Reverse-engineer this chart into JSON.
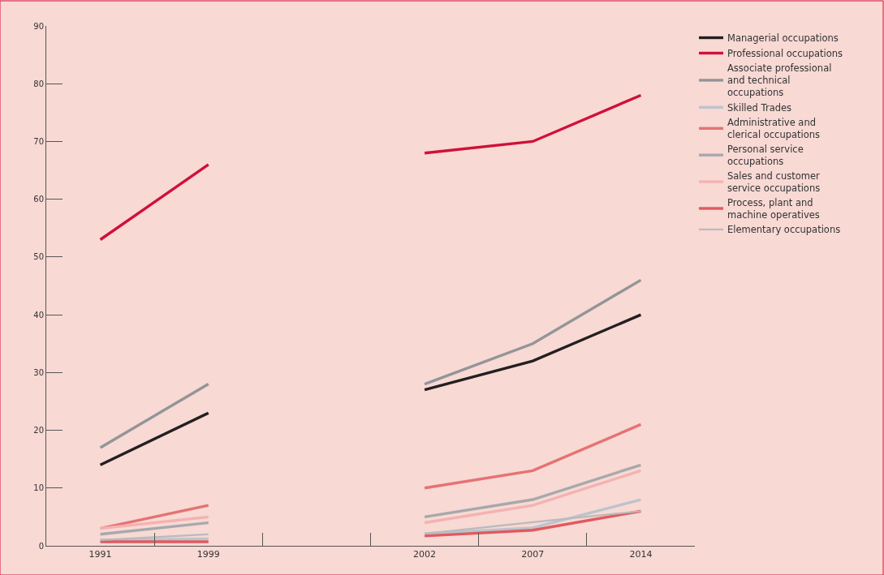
{
  "chart_data": {
    "type": "line",
    "categories": [
      "1991",
      "1999",
      null,
      "2002",
      "2007",
      "2014"
    ],
    "series": [
      {
        "name": "Managerial occupations",
        "color": "#231f20",
        "values": [
          14.0,
          23.0,
          null,
          27.0,
          32.0,
          40.0
        ]
      },
      {
        "name": "Professional occupations",
        "color": "#d0103a",
        "values": [
          53.0,
          66.0,
          null,
          68.0,
          70.0,
          78.0
        ]
      },
      {
        "name": "Associate professional and technical occupations",
        "color": "#939598",
        "values": [
          17.0,
          28.0,
          null,
          28.0,
          35.0,
          46.0
        ]
      },
      {
        "name": "Skilled Trades",
        "color": "#bcc4cb",
        "values": [
          1.0,
          1.2,
          null,
          2.1,
          3.1,
          8.0
        ]
      },
      {
        "name": "Administrative and clerical occupations",
        "color": "#e57373",
        "values": [
          3.0,
          7.0,
          null,
          10.0,
          13.0,
          21.0
        ]
      },
      {
        "name": "Personal service occupations",
        "color": "#a7a9ac",
        "values": [
          2.0,
          4.0,
          null,
          5.0,
          8.0,
          14.0
        ]
      },
      {
        "name": "Sales and customer service occupations",
        "color": "#f4b2b2",
        "values": [
          3.0,
          5.0,
          null,
          4.0,
          7.0,
          13.0
        ]
      },
      {
        "name": "Process, plant and machine operatives",
        "color": "#e05a60",
        "values": [
          0.7,
          0.7,
          null,
          1.7,
          2.7,
          6.0
        ]
      },
      {
        "name": "Elementary occupations",
        "color": "#b9babc",
        "values": [
          1.0,
          2.0,
          null,
          2.1,
          4.1,
          6.0
        ]
      }
    ],
    "ylim": [
      0,
      90
    ],
    "yticks": [
      0,
      10,
      20,
      30,
      40,
      50,
      60,
      70,
      80,
      90
    ],
    "grid": false,
    "legend": "right",
    "marker": "none",
    "line_style": "solid"
  }
}
